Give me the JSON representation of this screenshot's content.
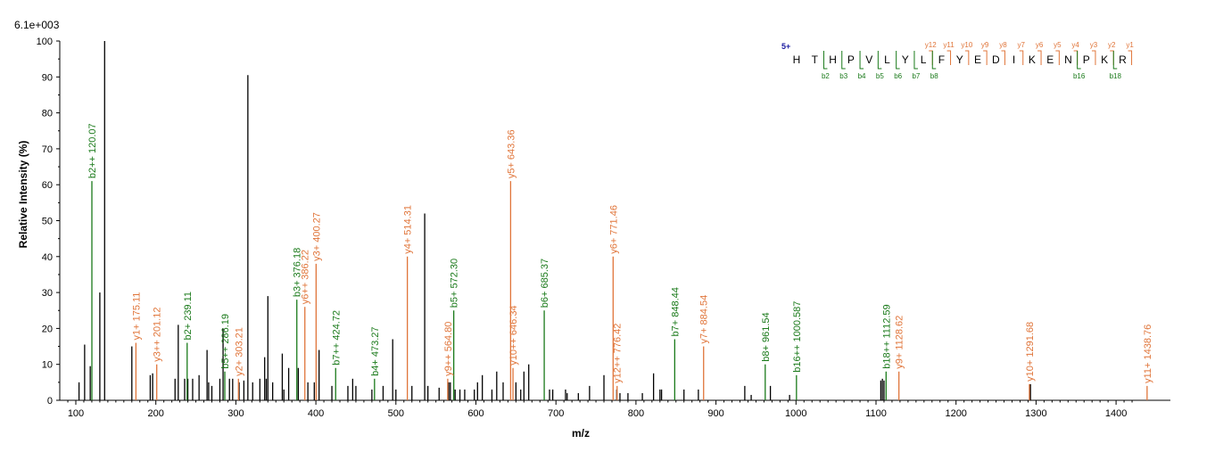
{
  "chart_data": {
    "type": "bar",
    "title": "",
    "scale_label": "6.1e+003",
    "xlabel": "m/z",
    "ylabel": "Relative   Intensity (%)",
    "xlim": [
      80,
      1420
    ],
    "ylim": [
      0,
      100
    ],
    "x_ticks": [
      100,
      200,
      300,
      400,
      500,
      600,
      700,
      800,
      900,
      1000,
      1100,
      1200,
      1300,
      1400
    ],
    "y_ticks": [
      0,
      10,
      20,
      30,
      40,
      50,
      60,
      70,
      80,
      90,
      100
    ],
    "colors": {
      "b": "#1a7a1a",
      "y": "#e0753a",
      "unassigned": "#000000"
    },
    "unassigned_peaks": [
      [
        104,
        5
      ],
      [
        111,
        15.5
      ],
      [
        118,
        9.5
      ],
      [
        130,
        30
      ],
      [
        136,
        100
      ],
      [
        170,
        15
      ],
      [
        193,
        7
      ],
      [
        196,
        7.5
      ],
      [
        224,
        6
      ],
      [
        228,
        21
      ],
      [
        236,
        6
      ],
      [
        240,
        6
      ],
      [
        246,
        6
      ],
      [
        254,
        7
      ],
      [
        264,
        14
      ],
      [
        266,
        5
      ],
      [
        270,
        4
      ],
      [
        280,
        6
      ],
      [
        284,
        20
      ],
      [
        292,
        6
      ],
      [
        296,
        6
      ],
      [
        304,
        5
      ],
      [
        310,
        5.5
      ],
      [
        315,
        90.5
      ],
      [
        321,
        5
      ],
      [
        330,
        6
      ],
      [
        336,
        12
      ],
      [
        338,
        6
      ],
      [
        340,
        29
      ],
      [
        346,
        5
      ],
      [
        358,
        13
      ],
      [
        360,
        3
      ],
      [
        366,
        9
      ],
      [
        378,
        9
      ],
      [
        390,
        5
      ],
      [
        398,
        5
      ],
      [
        404,
        14
      ],
      [
        420,
        4
      ],
      [
        440,
        4
      ],
      [
        446,
        6
      ],
      [
        450,
        4
      ],
      [
        470,
        3
      ],
      [
        484,
        4
      ],
      [
        496,
        17
      ],
      [
        500,
        3
      ],
      [
        520,
        4
      ],
      [
        536,
        52
      ],
      [
        540,
        4
      ],
      [
        554,
        3.5
      ],
      [
        566,
        5
      ],
      [
        568,
        5
      ],
      [
        574,
        3
      ],
      [
        580,
        3
      ],
      [
        586,
        3
      ],
      [
        598,
        3
      ],
      [
        602,
        5
      ],
      [
        608,
        7
      ],
      [
        620,
        3
      ],
      [
        626,
        8
      ],
      [
        634,
        5
      ],
      [
        650,
        5
      ],
      [
        656,
        3
      ],
      [
        660,
        8
      ],
      [
        666,
        10
      ],
      [
        692,
        3
      ],
      [
        696,
        3
      ],
      [
        712,
        3
      ],
      [
        714,
        2
      ],
      [
        728,
        2
      ],
      [
        742,
        4
      ],
      [
        760,
        7
      ],
      [
        776,
        3
      ],
      [
        780,
        2
      ],
      [
        790,
        2
      ],
      [
        808,
        2
      ],
      [
        822,
        7.5
      ],
      [
        830,
        3
      ],
      [
        832,
        3
      ],
      [
        860,
        3
      ],
      [
        878,
        3
      ],
      [
        936,
        4
      ],
      [
        944,
        1.5
      ],
      [
        968,
        4
      ],
      [
        992,
        1.5
      ],
      [
        1106,
        5.5
      ],
      [
        1108,
        6
      ],
      [
        1110,
        5.5
      ],
      [
        1293,
        4.5
      ]
    ],
    "annotated_peaks": [
      {
        "label": "b2++ 120.07",
        "x": 120.07,
        "y": 61,
        "series": "b"
      },
      {
        "label": "y1+ 175.11",
        "x": 175.11,
        "y": 16,
        "series": "y"
      },
      {
        "label": "y3++ 201.12",
        "x": 201.12,
        "y": 10,
        "series": "y"
      },
      {
        "label": "b2+ 239.11",
        "x": 239.11,
        "y": 16,
        "series": "b"
      },
      {
        "label": "b5++ 286.19",
        "x": 286.19,
        "y": 8,
        "series": "b"
      },
      {
        "label": "y2+ 303.21",
        "x": 303.21,
        "y": 6,
        "series": "y"
      },
      {
        "label": "b3+ 376.18",
        "x": 376.18,
        "y": 28,
        "series": "b"
      },
      {
        "label": "y6++ 386.22",
        "x": 386.22,
        "y": 26,
        "series": "y"
      },
      {
        "label": "y3+ 400.27",
        "x": 400.27,
        "y": 38,
        "series": "y"
      },
      {
        "label": "b7++ 424.72",
        "x": 424.72,
        "y": 9,
        "series": "b"
      },
      {
        "label": "b4+ 473.27",
        "x": 473.27,
        "y": 6,
        "series": "b"
      },
      {
        "label": "y4+ 514.31",
        "x": 514.31,
        "y": 40,
        "series": "y"
      },
      {
        "label": "y9++ 564.80",
        "x": 564.8,
        "y": 6,
        "series": "y"
      },
      {
        "label": "b5+ 572.30",
        "x": 572.3,
        "y": 25,
        "series": "b"
      },
      {
        "label": "y10++ 646.34",
        "x": 646.34,
        "y": 9,
        "series": "y"
      },
      {
        "label": "y5+ 643.36",
        "x": 643.36,
        "y": 61,
        "series": "y"
      },
      {
        "label": "b6+ 685.37",
        "x": 685.37,
        "y": 25,
        "series": "b"
      },
      {
        "label": "y6+ 771.46",
        "x": 771.46,
        "y": 40,
        "series": "y"
      },
      {
        "label": "y12++ 776.42",
        "x": 776.42,
        "y": 4,
        "series": "y"
      },
      {
        "label": "b7+ 848.44",
        "x": 848.44,
        "y": 17,
        "series": "b"
      },
      {
        "label": "y7+ 884.54",
        "x": 884.54,
        "y": 15,
        "series": "y"
      },
      {
        "label": "b8+ 961.54",
        "x": 961.54,
        "y": 10,
        "series": "b"
      },
      {
        "label": "b16++ 1000.587",
        "x": 1000.587,
        "y": 7,
        "series": "b"
      },
      {
        "label": "b18++ 1112.59",
        "x": 1112.59,
        "y": 8,
        "series": "b"
      },
      {
        "label": "y9+ 1128.62",
        "x": 1128.62,
        "y": 8,
        "series": "y"
      },
      {
        "label": "y10+ 1291.68",
        "x": 1291.68,
        "y": 4.5,
        "series": "y"
      },
      {
        "label": "y11+ 1438.76",
        "x": 1438.76,
        "y": 4,
        "series": "y"
      }
    ],
    "sequence": {
      "charge": "5+",
      "letters": [
        "H",
        "T",
        "H",
        "P",
        "V",
        "L",
        "Y",
        "L",
        "F",
        "Y",
        "E",
        "D",
        "I",
        "K",
        "E",
        "N",
        "P",
        "K",
        "R"
      ],
      "y_ions": [
        "y12",
        "y11",
        "y10",
        "y9",
        "y8",
        "y7",
        "y6",
        "y5",
        "y4",
        "y3",
        "y2",
        "y1"
      ],
      "b_ions": [
        "b2",
        "b3",
        "b4",
        "b5",
        "b6",
        "b7",
        "b8",
        "b16",
        "b18"
      ]
    }
  }
}
